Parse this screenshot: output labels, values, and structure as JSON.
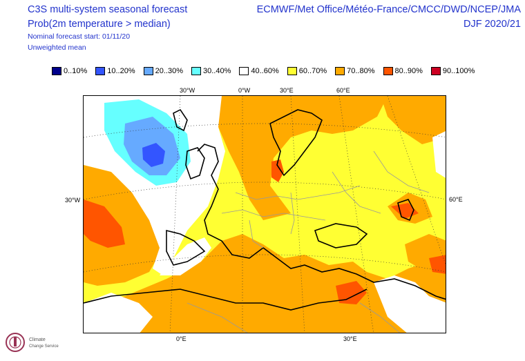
{
  "header": {
    "left_line1": "C3S multi-system seasonal forecast",
    "left_line2": "Prob(2m temperature > median)",
    "left_line3": "Nominal forecast start: 01/11/20",
    "left_line4": "Unweighted mean",
    "right_line1": "ECMWF/Met Office/Météo-France/CMCC/DWD/NCEP/JMA",
    "right_line2": "DJF 2020/21"
  },
  "legend": [
    {
      "label": "0..10%",
      "color": "#00008b"
    },
    {
      "label": "10..20%",
      "color": "#3355ff"
    },
    {
      "label": "20..30%",
      "color": "#66aaff"
    },
    {
      "label": "30..40%",
      "color": "#66ffff"
    },
    {
      "label": "40..60%",
      "color": "#ffffff"
    },
    {
      "label": "60..70%",
      "color": "#ffff33"
    },
    {
      "label": "70..80%",
      "color": "#ffaa00"
    },
    {
      "label": "80..90%",
      "color": "#ff5500"
    },
    {
      "label": "90..100%",
      "color": "#cc0022"
    }
  ],
  "axis_labels": {
    "top": [
      "30°W",
      "0°W",
      "30°E",
      "60°E"
    ],
    "left": "30°W",
    "right": "60°E",
    "bottom": [
      "0°E",
      "30°E"
    ]
  },
  "logo": {
    "text_line1": "Climate",
    "text_line2": "Change Service"
  }
}
